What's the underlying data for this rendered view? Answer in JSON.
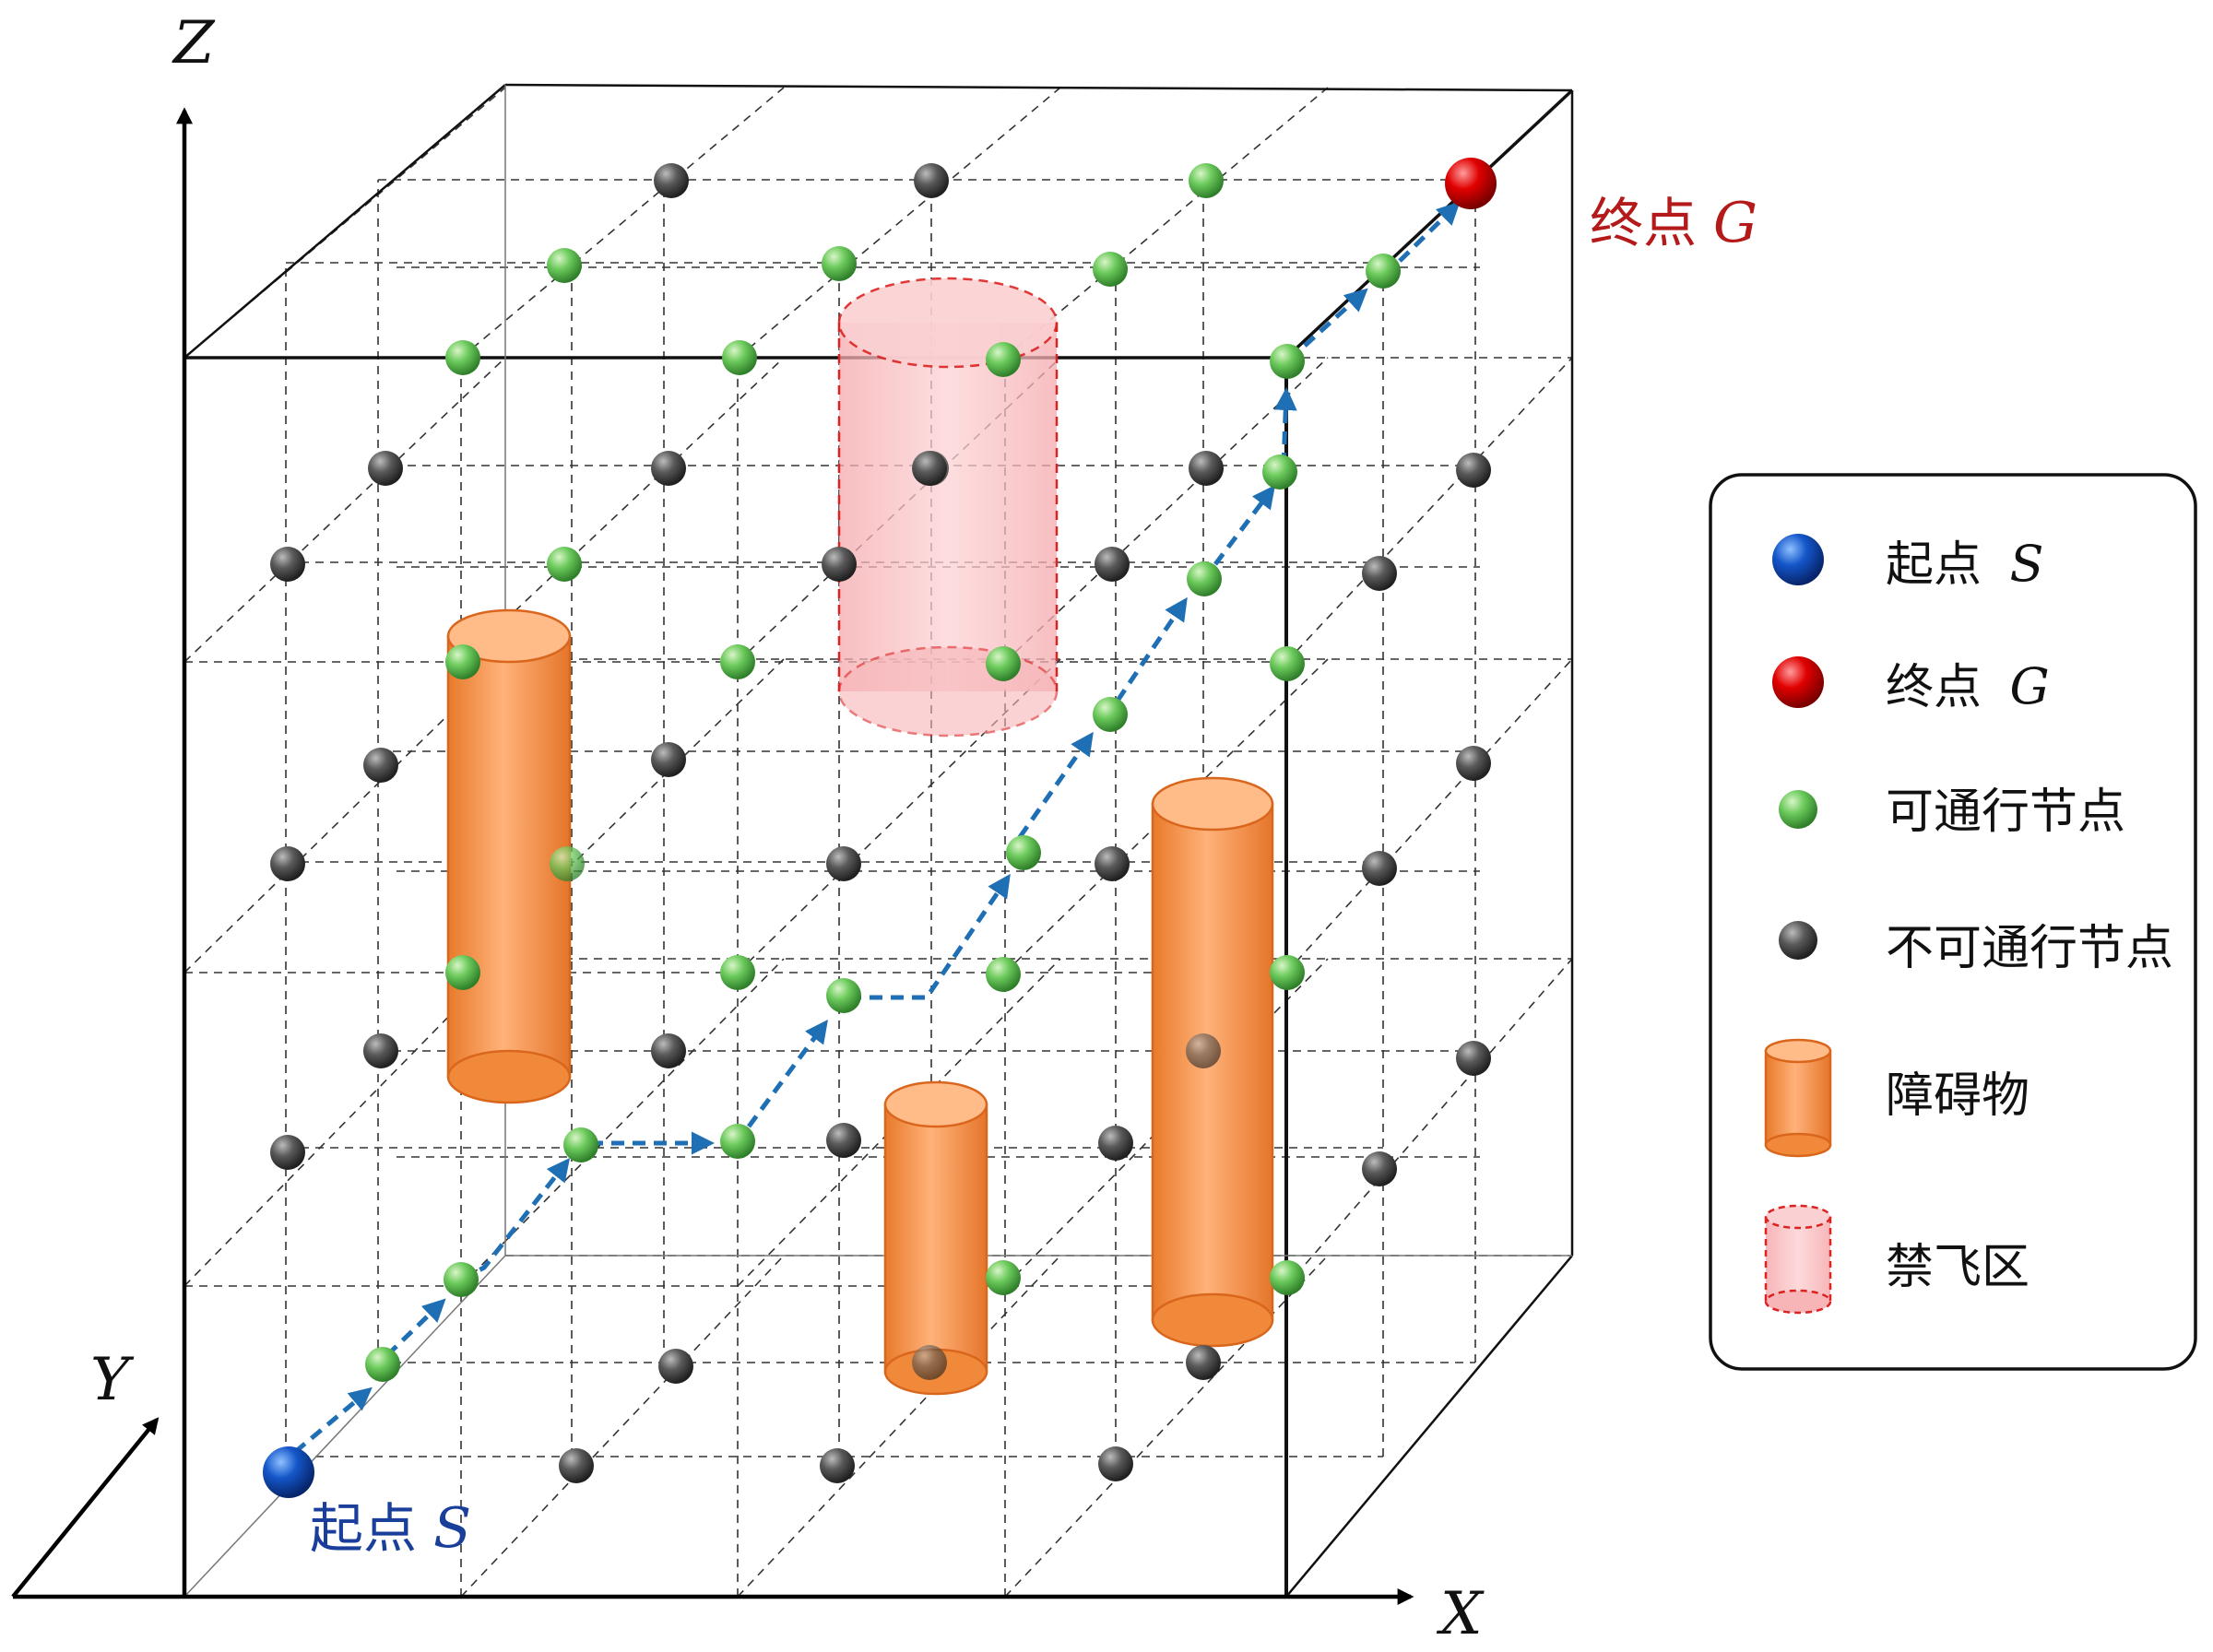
{
  "axes": {
    "x": "X",
    "y": "Y",
    "z": "Z"
  },
  "labels": {
    "start_prefix": "起点",
    "start_var": "S",
    "goal_prefix": "终点",
    "goal_var": "G"
  },
  "legend": {
    "start": {
      "text": "起点",
      "var": "S"
    },
    "goal": {
      "text": "终点",
      "var": "G"
    },
    "passable": "可通行节点",
    "impassable": "不可通行节点",
    "obstacle": "障碍物",
    "no_fly": "禁飞区"
  },
  "colors": {
    "start": "#1346b8",
    "goal": "#d40000",
    "passable": "#5cc65c",
    "impassable": "#4a4a4a",
    "obstacle": "#f08a3a",
    "no_fly": "#f7b5b8",
    "path": "#1f6fb5",
    "start_label": "#1a3f9a",
    "goal_label": "#b41a1a"
  }
}
